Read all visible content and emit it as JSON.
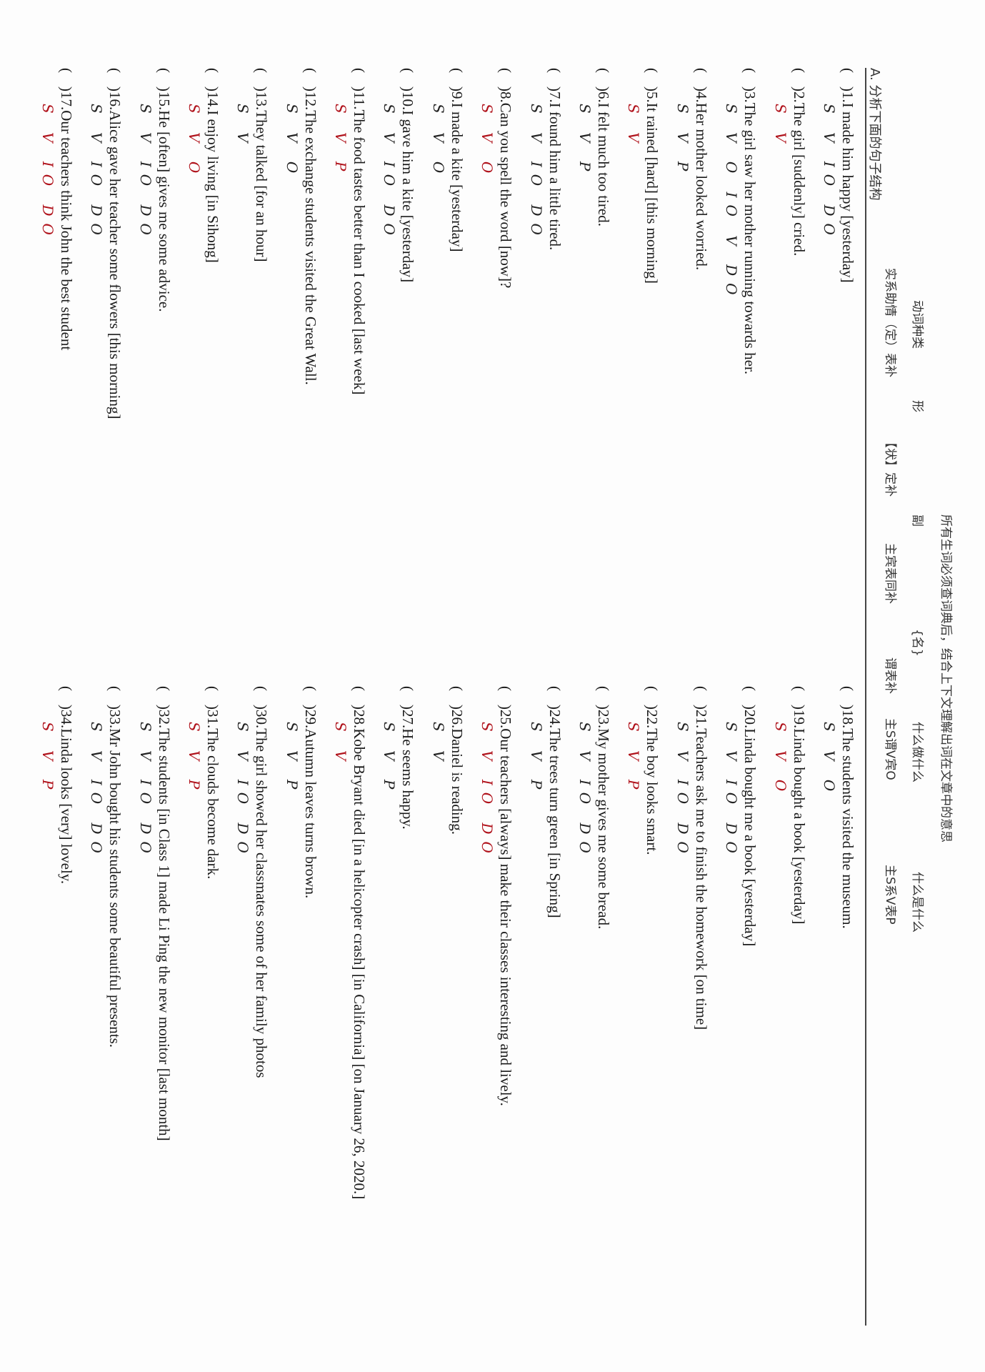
{
  "header": {
    "instruction": "所有生词必须查词典后，结合上下文理解出词在文章中的意思",
    "line2": [
      "动词种类",
      "形",
      "副",
      "{名}",
      "什么做什么",
      "什么是什么"
    ],
    "line3": [
      "实系助情（定）表补",
      "【状】定补",
      "主宾表同补",
      "谓表补",
      "主S谓V宾O",
      "主S系V表P"
    ],
    "section_title": "A. 分析下面的句子结构"
  },
  "left_sentences": [
    {
      "text": ")1.I made him happy [yesterday]",
      "marks": "S V IO DO"
    },
    {
      "text": ")2.The girl [suddenly] cried.",
      "marks": "S V"
    },
    {
      "text": ")3.The girl saw her mother running towards her.",
      "marks": "S V O IO V DO"
    },
    {
      "text": ")4.Her mother looked worried.",
      "marks": "S V P"
    },
    {
      "text": ")5.It rained [hard] [this morning]",
      "marks": "S V"
    },
    {
      "text": ")6.I felt much too tired.",
      "marks": "S V P"
    },
    {
      "text": ")7.I found him a little tired.",
      "marks": "S V IO DO"
    },
    {
      "text": ")8.Can you spell the word [now]?",
      "marks": "S V O"
    },
    {
      "text": ")9.I made a kite [yesterday]",
      "marks": "S V O"
    },
    {
      "text": ")10.I gave him a kite [yesterday]",
      "marks": "S V IO DO"
    },
    {
      "text": ")11.The food tastes better than I cooked [last week]",
      "marks": "S V P"
    },
    {
      "text": ")12.The exchange students visited the Great Wall.",
      "marks": "S V O"
    },
    {
      "text": ")13.They talked [for an hour]",
      "marks": "S V"
    },
    {
      "text": ")14.I enjoy living [in Sihong]",
      "marks": "S V O"
    },
    {
      "text": ")15.He [often] gives me some advice.",
      "marks": "S V IO DO"
    },
    {
      "text": ")16.Alice gave her teacher some flowers [this morning]",
      "marks": "S V IO DO"
    },
    {
      "text": ")17.Our teachers think John the best student",
      "marks": "S V IO DO"
    }
  ],
  "right_sentences": [
    {
      "text": ")18.The students visited the museum.",
      "marks": "S V O"
    },
    {
      "text": ")19.Linda bought a book [yesterday]",
      "marks": "S V O"
    },
    {
      "text": ")20.Linda bought me a book [yesterday]",
      "marks": "S V IO DO"
    },
    {
      "text": ")21.Teachers ask me to finish the homework [on time]",
      "marks": "S V IO DO"
    },
    {
      "text": ")22.The boy looks smart.",
      "marks": "S V P"
    },
    {
      "text": ")23.My mother gives me some bread.",
      "marks": "S V IO DO"
    },
    {
      "text": ")24.The trees turn green [in Spring]",
      "marks": "S V P"
    },
    {
      "text": ")25.Our teachers [always] make their classes interesting and lively.",
      "marks": "S V IO DO"
    },
    {
      "text": ")26.Daniel is reading.",
      "marks": "S V"
    },
    {
      "text": ")27.He seems happy.",
      "marks": "S V P"
    },
    {
      "text": ")28.Kobe Bryant died [in a helicopter crash] [in California] [on January 26, 2020.]",
      "marks": "S V"
    },
    {
      "text": ")29.Autumn leaves turns brown.",
      "marks": "S V P"
    },
    {
      "text": ")30.The girl showed her classmates some of her family photos",
      "marks": "S V IO DO"
    },
    {
      "text": ")31.The clouds become dark.",
      "marks": "S V P"
    },
    {
      "text": ")32.The students [in Class 1] made Li Ping the new monitor [last month]",
      "marks": "S V IO DO"
    },
    {
      "text": ")33.Mr John bought his students some beautiful presents.",
      "marks": "S V IO DO"
    },
    {
      "text": ")34.Linda looks [very] lovely.",
      "marks": "S V P"
    }
  ],
  "paren_open": "(",
  "colors": {
    "ink": "#1a1a1a",
    "red_pen": "#b0121b"
  }
}
